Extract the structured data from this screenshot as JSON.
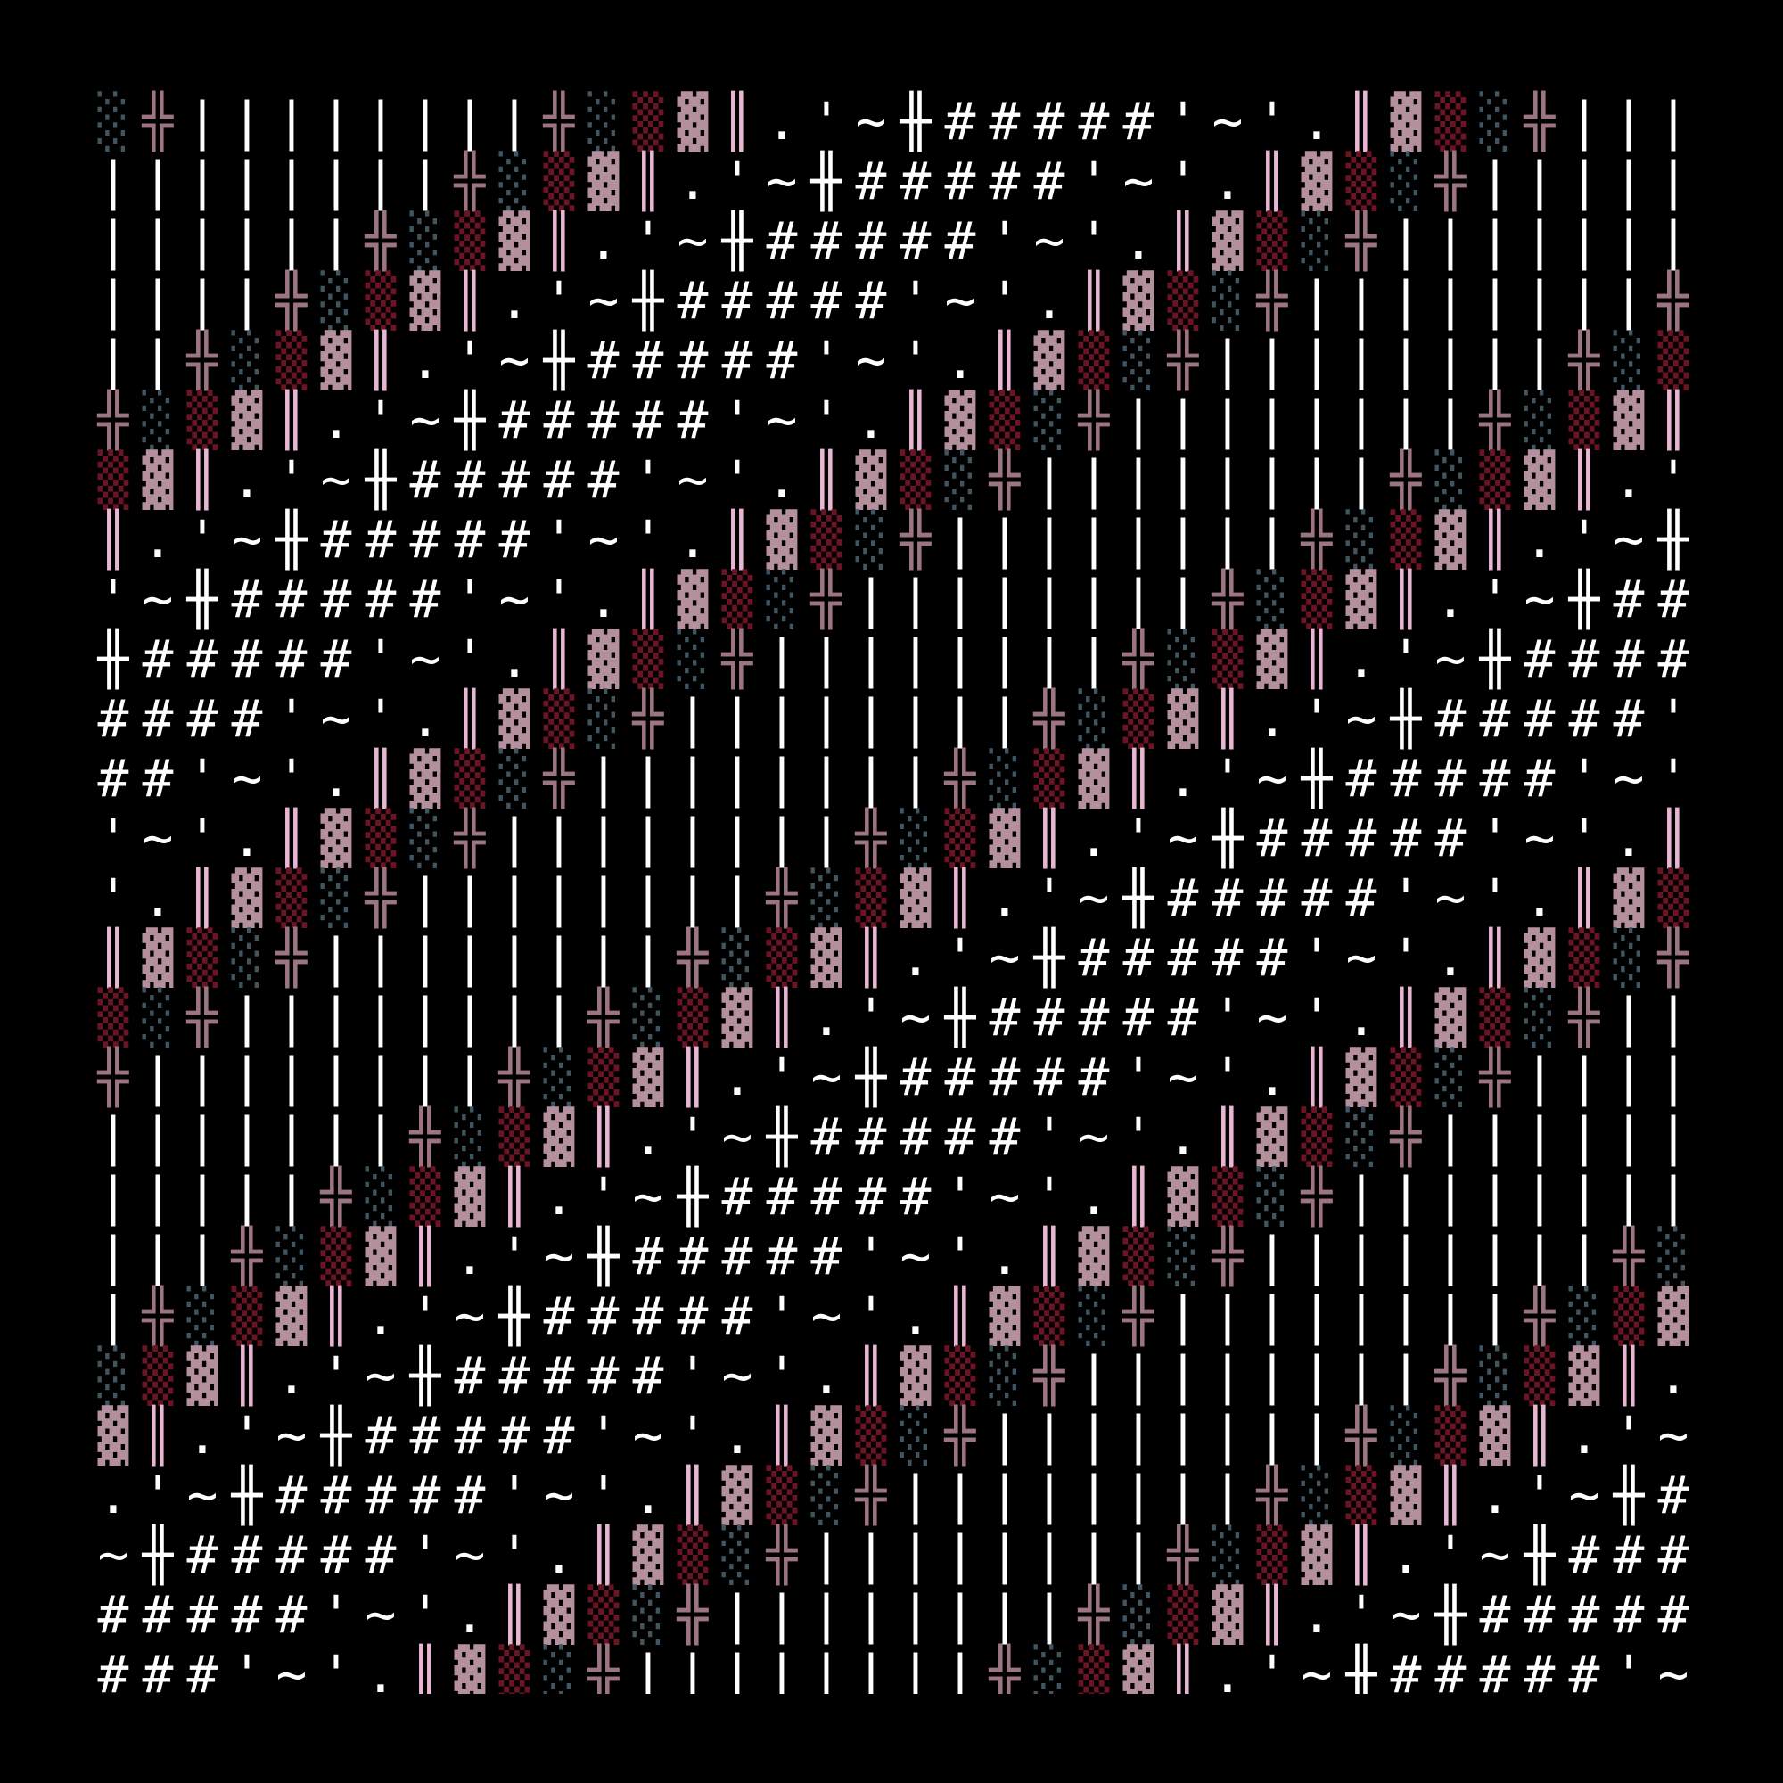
{
  "grid": {
    "rows": [
      "░╬||||||||╬░▒▓║.'~╫#####'~'.║▓▒░╬|||",
      "||||||||╬░▒▓║.'~╫#####'~'.║▓▒░╬|||||",
      "||||||╬░▒▓║.'~╫#####'~'.║▓▒░╬|||||||",
      "||||╬░▒▓║.'~╫#####'~'.║▓▒░╬||||||||╬",
      "||╬░▒▓║.'~╫#####'~'.║▓▒░╬||||||||╬░▒",
      "╬░▒▓║.'~╫#####'~'.║▓▒░╬||||||||╬░▒▓║",
      "▒▓║.'~╫#####'~'.║▓▒░╬||||||||╬░▒▓║.'",
      "║.'~╫#####'~'.║▓▒░╬||||||||╬░▒▓║.'~╫",
      "'~╫#####'~'.║▓▒░╬||||||||╬░▒▓║.'~╫##",
      "╫#####'~'.║▓▒░╬||||||||╬░▒▓║.'~╫####",
      "####'~'.║▓▒░╬||||||||╬░▒▓║.'~╫#####'",
      "##'~'.║▓▒░╬||||||||╬░▒▓║.'~╫#####'~'",
      "'~'.║▓▒░╬||||||||╬░▒▓║.'~╫#####'~'.║",
      "'.║▓▒░╬||||||||╬░▒▓║.'~╫#####'~'.║▓▒",
      "║▓▒░╬||||||||╬░▒▓║.'~╫#####'~'.║▓▒░╬",
      "▒░╬||||||||╬░▒▓║.'~╫#####'~'.║▓▒░╬||",
      "╬||||||||╬░▒▓║.'~╫#####'~'.║▓▒░╬||||",
      "|||||||╬░▒▓║.'~╫#####'~'.║▓▒░╬||||||",
      "|||||╬░▒▓║.'~╫#####'~'.║▓▒░╬||||||||",
      "|||╬░▒▓║.'~╫#####'~'.║▓▒░╬||||||||╬░",
      "|╬░▒▓║.'~╫#####'~'.║▓▒░╬||||||||╬░▒▓",
      "░▒▓║.'~╫#####'~'.║▓▒░╬||||||||╬░▒▓║.",
      "▓║.'~╫#####'~'.║▓▒░╬||||||||╬░▒▓║.'~",
      ".'~╫#####'~'.║▓▒░╬||||||||╬░▒▓║.'~╫#",
      "~╫#####'~'.║▓▒░╬||||||||╬░▒▓║.'~╫###",
      "#####'~'.║▓▒░╬||||||||╬░▒▓║.'~╫#####",
      "###'~'.║▓▒░╬||||||||╬░▒▓║.'~╫#####'~"
    ],
    "colors": {
      "▓": "#b48f9c",
      "║": "#e6b6d2",
      "▒": "#6a1424",
      "░": "#3f5560",
      "╬": "#9c7580",
      "|": "#ffffff",
      "#": "#ffffff",
      "╫": "#ffffff",
      "'": "#ffffff",
      "~": "#ffffff",
      ".": "#ffffff"
    },
    "background": "#000000"
  }
}
